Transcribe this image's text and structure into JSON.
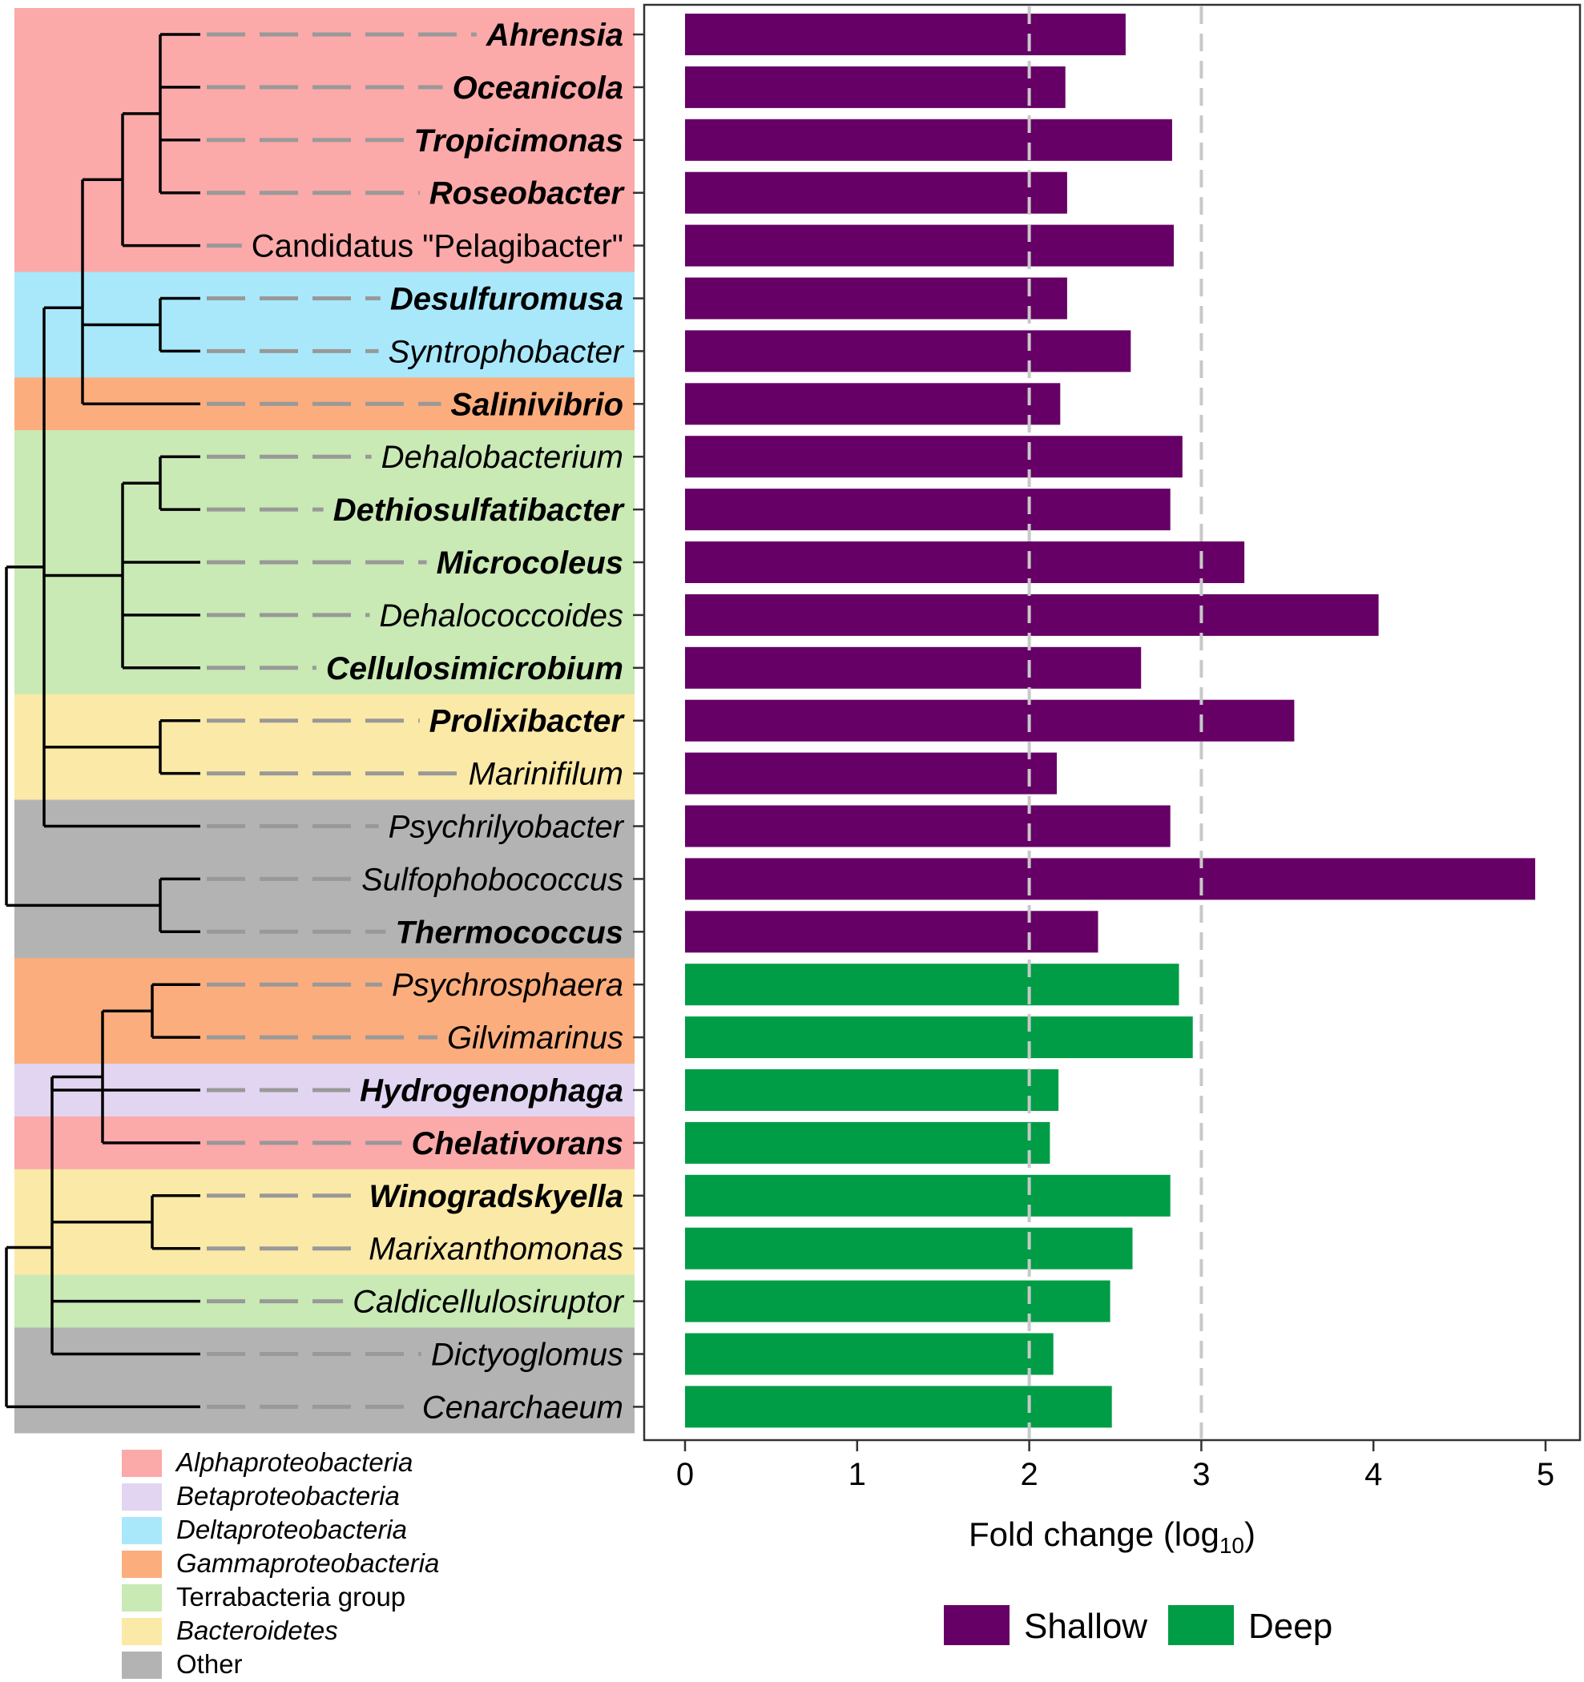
{
  "chart_data": {
    "type": "bar",
    "orientation": "horizontal",
    "title": "",
    "xlabel": "Fold change (log",
    "xlabel_subscript": "10",
    "xlabel_suffix": ")",
    "xlim": [
      -0.25,
      5.2
    ],
    "xticks": [
      0,
      1,
      2,
      3,
      4,
      5
    ],
    "reference_lines": [
      2,
      3
    ],
    "grid": false,
    "series": [
      {
        "name": "Shallow",
        "color": "#660066"
      },
      {
        "name": "Deep",
        "color": "#009d46"
      }
    ],
    "rows": [
      {
        "genus": "Ahrensia",
        "bold": true,
        "group": "alpha",
        "series": "Shallow",
        "value": 2.56
      },
      {
        "genus": "Oceanicola",
        "bold": true,
        "group": "alpha",
        "series": "Shallow",
        "value": 2.21
      },
      {
        "genus": "Tropicimonas",
        "bold": true,
        "group": "alpha",
        "series": "Shallow",
        "value": 2.83
      },
      {
        "genus": "Roseobacter",
        "bold": true,
        "group": "alpha",
        "series": "Shallow",
        "value": 2.22
      },
      {
        "genus": "Candidatus \"Pelagibacter\"",
        "bold": false,
        "plain": true,
        "group": "alpha",
        "series": "Shallow",
        "value": 2.84
      },
      {
        "genus": "Desulfuromusa",
        "bold": true,
        "group": "delta",
        "series": "Shallow",
        "value": 2.22
      },
      {
        "genus": "Syntrophobacter",
        "bold": false,
        "group": "delta",
        "series": "Shallow",
        "value": 2.59
      },
      {
        "genus": "Salinivibrio",
        "bold": true,
        "group": "gamma",
        "series": "Shallow",
        "value": 2.18
      },
      {
        "genus": "Dehalobacterium",
        "bold": false,
        "group": "terra",
        "series": "Shallow",
        "value": 2.89
      },
      {
        "genus": "Dethiosulfatibacter",
        "bold": true,
        "group": "terra",
        "series": "Shallow",
        "value": 2.82
      },
      {
        "genus": "Microcoleus",
        "bold": true,
        "group": "terra",
        "series": "Shallow",
        "value": 3.25
      },
      {
        "genus": "Dehalococcoides",
        "bold": false,
        "group": "terra",
        "series": "Shallow",
        "value": 4.03
      },
      {
        "genus": "Cellulosimicrobium",
        "bold": true,
        "group": "terra",
        "series": "Shallow",
        "value": 2.65
      },
      {
        "genus": "Prolixibacter",
        "bold": true,
        "group": "bact",
        "series": "Shallow",
        "value": 3.54
      },
      {
        "genus": "Marinifilum",
        "bold": false,
        "group": "bact",
        "series": "Shallow",
        "value": 2.16
      },
      {
        "genus": "Psychrilyobacter",
        "bold": false,
        "group": "other",
        "series": "Shallow",
        "value": 2.82
      },
      {
        "genus": "Sulfophobococcus",
        "bold": false,
        "group": "other",
        "series": "Shallow",
        "value": 4.94
      },
      {
        "genus": "Thermococcus",
        "bold": true,
        "group": "other",
        "series": "Shallow",
        "value": 2.4
      },
      {
        "genus": "Psychrosphaera",
        "bold": false,
        "group": "gamma",
        "series": "Deep",
        "value": 2.87
      },
      {
        "genus": "Gilvimarinus",
        "bold": false,
        "group": "gamma",
        "series": "Deep",
        "value": 2.95
      },
      {
        "genus": "Hydrogenophaga",
        "bold": true,
        "group": "beta",
        "series": "Deep",
        "value": 2.17
      },
      {
        "genus": "Chelativorans",
        "bold": true,
        "group": "alpha",
        "series": "Deep",
        "value": 2.12
      },
      {
        "genus": "Winogradskyella",
        "bold": true,
        "group": "bact",
        "series": "Deep",
        "value": 2.82
      },
      {
        "genus": "Marixanthomonas",
        "bold": false,
        "group": "bact",
        "series": "Deep",
        "value": 2.6
      },
      {
        "genus": "Caldicellulosiruptor",
        "bold": false,
        "group": "terra",
        "series": "Deep",
        "value": 2.47
      },
      {
        "genus": "Dictyoglomus",
        "bold": false,
        "group": "other",
        "series": "Deep",
        "value": 2.14
      },
      {
        "genus": "Cenarchaeum",
        "bold": false,
        "group": "other",
        "series": "Deep",
        "value": 2.48
      }
    ],
    "taxon_groups": {
      "alpha": {
        "label": "Alphaproteobacteria",
        "italic": true,
        "color": "#fba9a9"
      },
      "beta": {
        "label": "Betaproteobacteria",
        "italic": true,
        "color": "#e2d5f1"
      },
      "delta": {
        "label": "Deltaproteobacteria",
        "italic": true,
        "color": "#a9e8fb"
      },
      "gamma": {
        "label": "Gammaproteobacteria",
        "italic": true,
        "color": "#fbad7d"
      },
      "terra": {
        "label": "Terrabacteria group",
        "italic": false,
        "color": "#c9e9b5"
      },
      "bact": {
        "label": "Bacteroidetes",
        "italic": true,
        "color": "#fbe9a7"
      },
      "other": {
        "label": "Other",
        "italic": false,
        "color": "#b3b3b3"
      }
    },
    "taxon_legend_order": [
      "alpha",
      "beta",
      "delta",
      "gamma",
      "terra",
      "bact",
      "other"
    ]
  }
}
